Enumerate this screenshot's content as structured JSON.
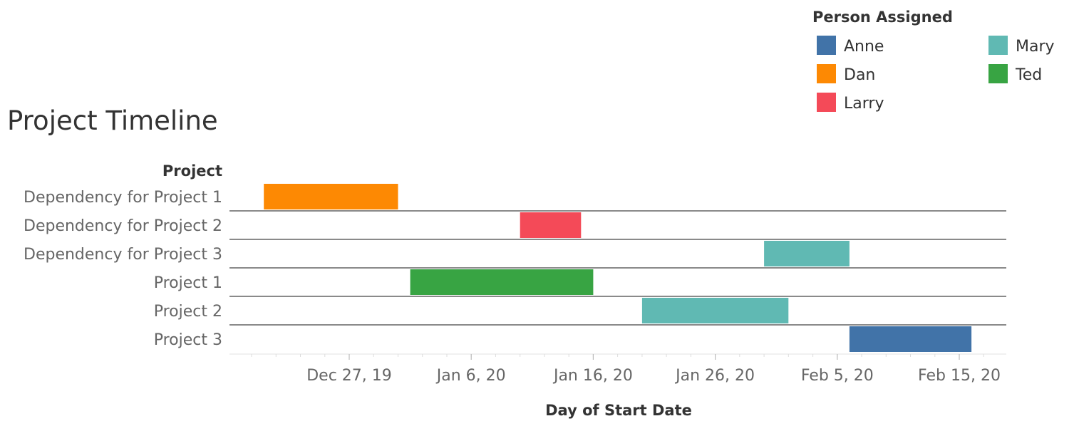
{
  "chart_data": {
    "type": "bar",
    "subtype": "gantt",
    "title": "Project Timeline",
    "row_header": "Project",
    "xlabel": "Day of Start Date",
    "x_ticks": [
      "Dec 27, 19",
      "Jan 6, 20",
      "Jan 16, 20",
      "Jan 26, 20",
      "Feb 5, 20",
      "Feb 15, 20"
    ],
    "x_tick_dates": [
      "2019-12-27",
      "2020-01-06",
      "2020-01-16",
      "2020-01-26",
      "2020-02-05",
      "2020-02-15"
    ],
    "xlim": [
      "2019-12-18",
      "2020-02-19"
    ],
    "legend": {
      "title": "Person Assigned",
      "position": "top-right",
      "items": [
        {
          "name": "Anne",
          "color": "#4173a8"
        },
        {
          "name": "Dan",
          "color": "#fd8903"
        },
        {
          "name": "Larry",
          "color": "#f44a58"
        },
        {
          "name": "Mary",
          "color": "#60b9b3"
        },
        {
          "name": "Ted",
          "color": "#38a443"
        }
      ]
    },
    "tasks": [
      {
        "project": "Dependency for Project 1",
        "person": "Dan",
        "start": "2019-12-20",
        "end": "2019-12-31"
      },
      {
        "project": "Dependency for Project 2",
        "person": "Larry",
        "start": "2020-01-10",
        "end": "2020-01-15"
      },
      {
        "project": "Dependency for Project 3",
        "person": "Mary",
        "start": "2020-01-30",
        "end": "2020-02-06"
      },
      {
        "project": "Project 1",
        "person": "Ted",
        "start": "2020-01-01",
        "end": "2020-01-16"
      },
      {
        "project": "Project 2",
        "person": "Mary",
        "start": "2020-01-20",
        "end": "2020-02-01"
      },
      {
        "project": "Project 3",
        "person": "Anne",
        "start": "2020-02-06",
        "end": "2020-02-16"
      }
    ]
  }
}
